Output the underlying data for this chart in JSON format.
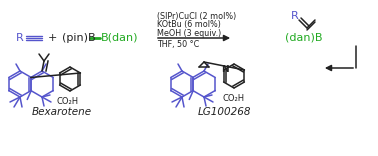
{
  "bg_color": "#ffffff",
  "blue": "#5555cc",
  "green": "#22aa22",
  "black": "#222222",
  "reaction_conditions": [
    "(SIPr)CuCl (2 mol%)",
    "KOtBu (6 mol%)",
    "MeOH (3 equiv.)",
    "THF, 50 °C"
  ],
  "bexarotene_label": "Bexarotene",
  "lg100268_label": "LG100268",
  "fs_cond": 5.8,
  "fs_chem": 8.0,
  "fs_label": 7.5
}
